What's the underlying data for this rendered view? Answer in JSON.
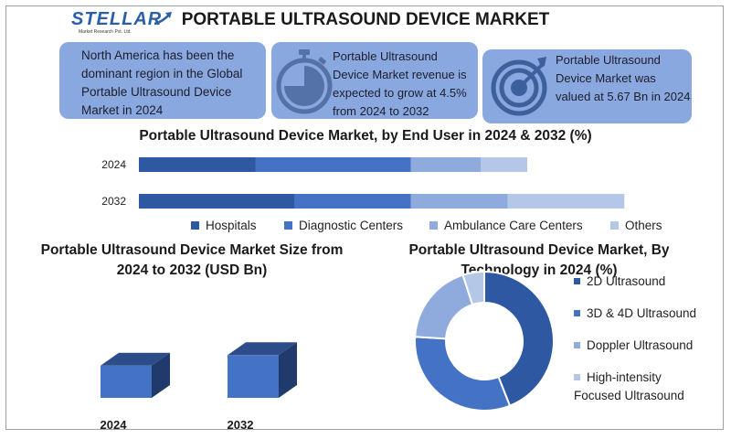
{
  "header": {
    "logo_text": "STELLAR",
    "logo_subtext": "Market Research Pvt. Ltd.",
    "title": "PORTABLE ULTRASOUND DEVICE MARKET"
  },
  "cards": {
    "card1": "North America has been the dominant region in the Global Portable Ultrasound Device Market in 2024",
    "card2": "Portable Ultrasound Device Market revenue is expected to grow at 4.5% from 2024 to 2032",
    "card3": "Portable Ultrasound Device Market was valued at 5.67 Bn in 2024"
  },
  "colors": {
    "card_bg": "#8aa8e0",
    "hospitals": "#2f58a3",
    "diagnostic_centers": "#4472c4",
    "ambulance_care_centers": "#8faadc",
    "others": "#b4c7e7",
    "cube": "#4472c4"
  },
  "chart_data": [
    {
      "type": "bar",
      "orientation": "horizontal",
      "stacked": true,
      "title": "Portable Ultrasound Device Market, by End User in 2024 & 2032 (%)",
      "categories": [
        "2024",
        "2032"
      ],
      "series": [
        {
          "name": "Hospitals",
          "values": [
            30,
            40
          ]
        },
        {
          "name": "Diagnostic Centers",
          "values": [
            40,
            30
          ]
        },
        {
          "name": "Ambulance Care Centers",
          "values": [
            18,
            25
          ]
        },
        {
          "name": "Others",
          "values": [
            12,
            30
          ]
        }
      ],
      "legend": "bottom",
      "grid": false
    },
    {
      "type": "bar",
      "style": "3d",
      "title": "Portable Ultrasound Device Market Size from 2024 to 2032 (USD Bn)",
      "categories": [
        "2024",
        "2032"
      ],
      "values": [
        5.67,
        8.06
      ],
      "grid": false
    },
    {
      "type": "pie",
      "style": "donut",
      "title": "Portable Ultrasound Device Market, By Technology in 2024 (%)",
      "categories": [
        "2D Ultrasound",
        "3D & 4D Ultrasound",
        "Doppler Ultrasound",
        "High-intensity Focused Ultrasound"
      ],
      "values": [
        44,
        32,
        19,
        5
      ],
      "legend": "right"
    }
  ]
}
